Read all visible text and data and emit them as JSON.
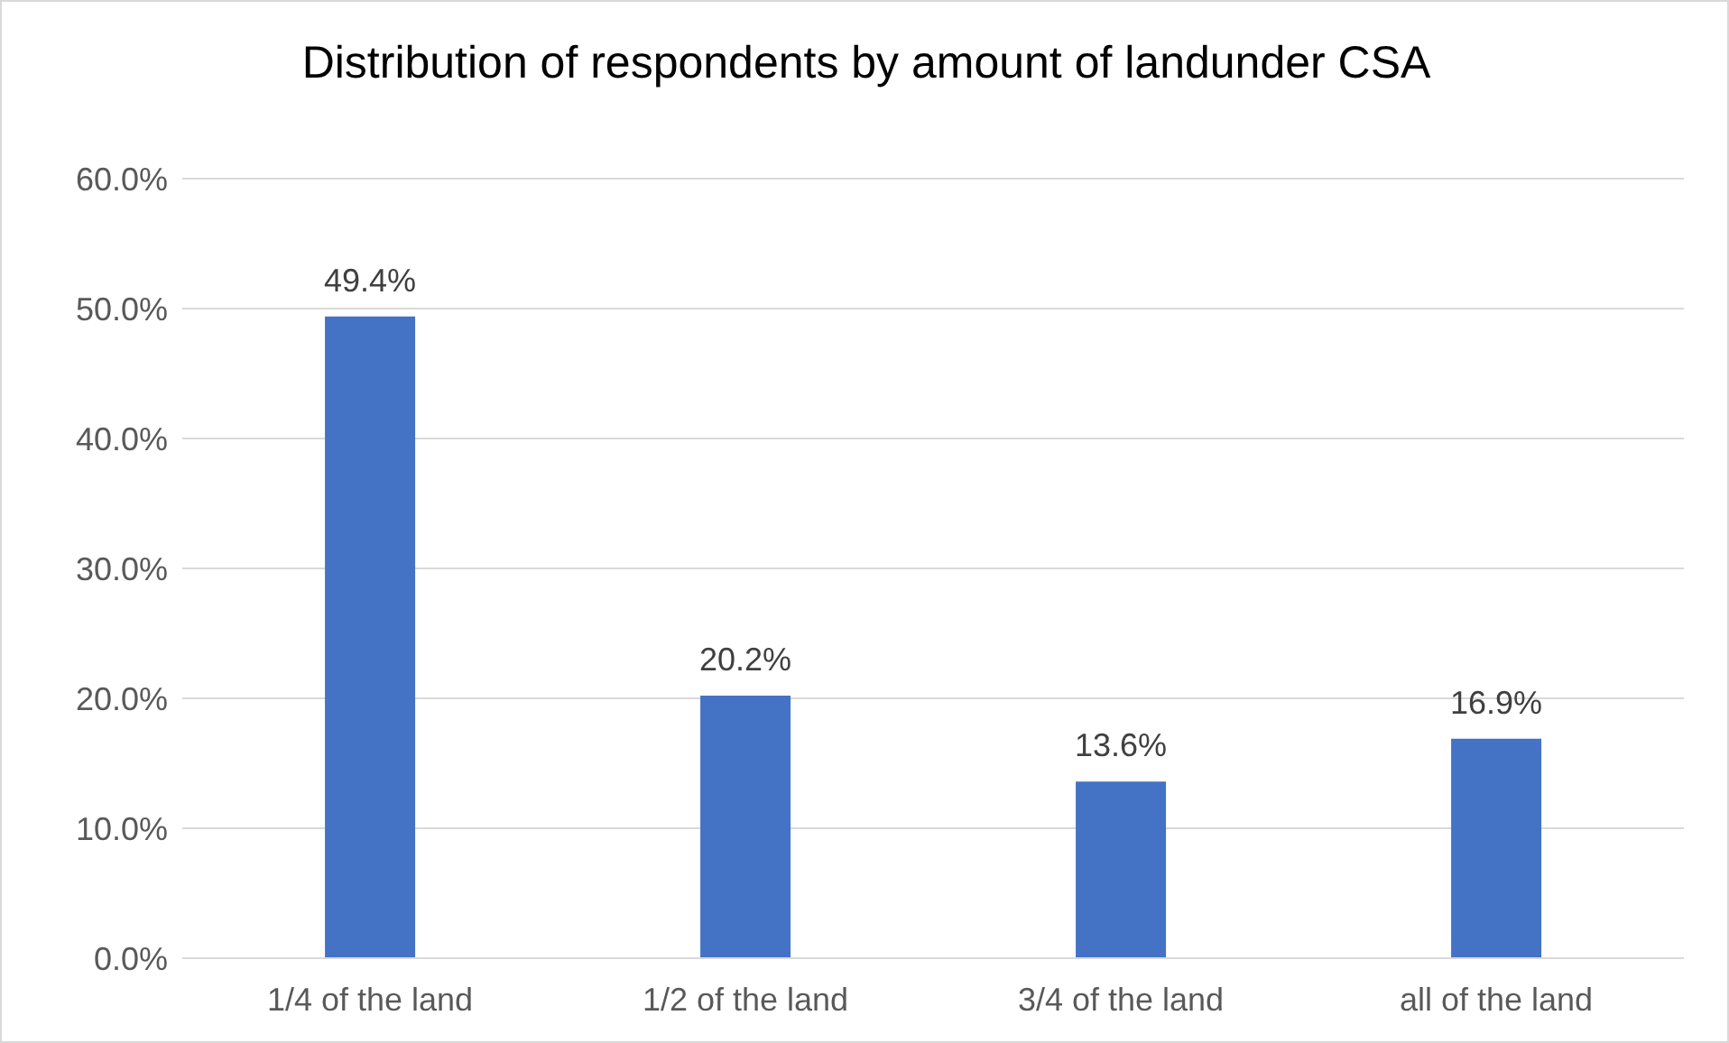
{
  "chart_data": {
    "type": "bar",
    "title": "Distribution of respondents by amount of landunder CSA",
    "categories": [
      "1/4 of the land",
      "1/2 of the land",
      "3/4 of the land",
      "all of the land"
    ],
    "values": [
      49.4,
      20.2,
      13.6,
      16.9
    ],
    "color": "#4472c4",
    "value_labels": [
      "49.4%",
      "20.2%",
      "13.6%",
      "16.9%"
    ],
    "ylim": [
      0,
      60
    ],
    "yticks": [
      {
        "value": 0,
        "label": "0.0%"
      },
      {
        "value": 10,
        "label": "10.0%"
      },
      {
        "value": 20,
        "label": "20.0%"
      },
      {
        "value": 30,
        "label": "30.0%"
      },
      {
        "value": 40,
        "label": "40.0%"
      },
      {
        "value": 50,
        "label": "50.0%"
      },
      {
        "value": 60,
        "label": "60.0%"
      }
    ],
    "grid": "y",
    "legend": false
  }
}
